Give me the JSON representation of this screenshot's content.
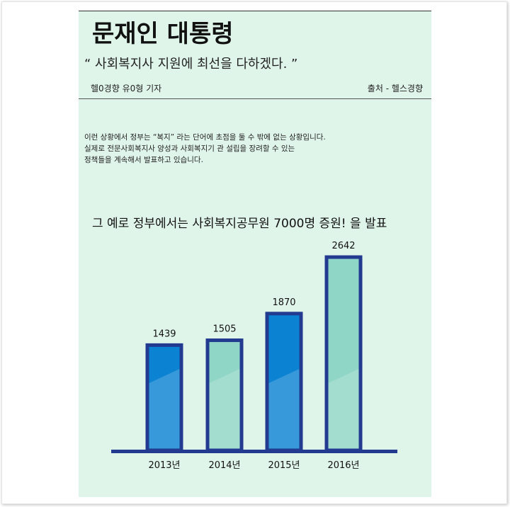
{
  "article": {
    "title": "문재인 대통령",
    "subtitle": "“ 사회복지사 지원에 최선을 다하겠다. ”",
    "byline": "헬0경향 유0형 기자",
    "source": "출처 - 헬스경향",
    "body_lines": [
      "이런 상황에서 정부는 “복지” 라는 단어에 초점을 둘 수 밖에 없는 상황입니다.",
      "실제로 전문사회복지사 양성과 사회복지기 관 설립을 장려할 수 있는",
      "정책들을 계속해서 발표하고 있습니다."
    ],
    "headline": "그 예로 정부에서는 사회복지공무원 7000명 증원!  을 발표"
  },
  "chart_data": {
    "type": "bar",
    "categories": [
      "2013년",
      "2014년",
      "2015년",
      "2016년"
    ],
    "values": [
      1439,
      1505,
      1870,
      2642
    ],
    "data_labels": [
      "1439",
      "1505",
      "1870",
      "2642"
    ],
    "title": "",
    "xlabel": "",
    "ylabel": "",
    "grid": false,
    "legend": "none",
    "colors": {
      "bar_fills": [
        "#0b82d2",
        "#8fd6c6",
        "#0b82d2",
        "#8fd6c6"
      ],
      "bar_border": "#223a8f",
      "baseline": "#223a8f"
    }
  }
}
